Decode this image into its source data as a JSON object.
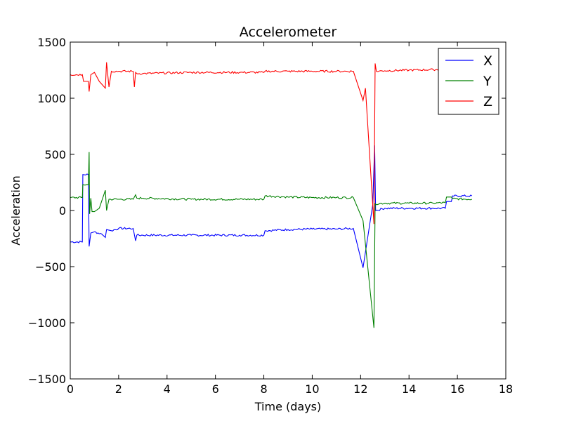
{
  "chart_data": {
    "type": "line",
    "title": "Accelerometer",
    "xlabel": "Time (days)",
    "ylabel": "Acceleration",
    "xlim": [
      0,
      18
    ],
    "ylim": [
      -1500,
      1500
    ],
    "xticks": [
      "0",
      "2",
      "4",
      "6",
      "8",
      "10",
      "12",
      "14",
      "16",
      "18"
    ],
    "yticks": [
      "−1500",
      "−1000",
      "−500",
      "0",
      "500",
      "1000",
      "1500"
    ],
    "grid": false,
    "legend_position": "top-right",
    "series": [
      {
        "name": "X",
        "color": "#0000ff",
        "x": [
          0.0,
          0.5,
          0.52,
          0.75,
          0.78,
          0.85,
          1.0,
          1.3,
          1.45,
          1.5,
          1.7,
          2.0,
          2.6,
          2.7,
          2.75,
          3.0,
          5.0,
          7.0,
          8.0,
          8.05,
          9.0,
          10.0,
          11.0,
          11.7,
          12.1,
          12.5,
          12.58,
          12.62,
          13.0,
          14.0,
          15.0,
          15.5,
          15.55,
          15.75,
          15.8,
          16.6
        ],
        "y": [
          -280,
          -280,
          320,
          320,
          -320,
          -200,
          -190,
          -210,
          -240,
          -170,
          -180,
          -160,
          -160,
          -270,
          -220,
          -220,
          -220,
          -220,
          -220,
          -180,
          -170,
          -165,
          -165,
          -160,
          -510,
          50,
          580,
          0,
          20,
          20,
          20,
          20,
          80,
          80,
          130,
          130
        ]
      },
      {
        "name": "Y",
        "color": "#008000",
        "x": [
          0.0,
          0.5,
          0.52,
          0.75,
          0.78,
          0.8,
          0.85,
          0.9,
          1.0,
          1.2,
          1.45,
          1.5,
          1.6,
          2.0,
          2.6,
          2.7,
          2.75,
          3.0,
          5.0,
          7.0,
          8.0,
          8.05,
          9.0,
          10.0,
          11.0,
          11.7,
          12.1,
          12.55,
          12.6,
          13.0,
          14.0,
          15.0,
          15.5,
          15.55,
          15.75,
          15.8,
          16.6
        ],
        "y": [
          115,
          115,
          230,
          230,
          520,
          -30,
          110,
          -10,
          -10,
          20,
          180,
          0,
          100,
          100,
          100,
          140,
          110,
          110,
          100,
          100,
          100,
          130,
          120,
          115,
          115,
          115,
          -90,
          -1045,
          60,
          65,
          65,
          65,
          70,
          120,
          120,
          105,
          100
        ]
      },
      {
        "name": "Z",
        "color": "#ff0000",
        "x": [
          0.0,
          0.5,
          0.55,
          0.75,
          0.78,
          0.85,
          1.0,
          1.2,
          1.45,
          1.5,
          1.6,
          1.7,
          2.0,
          2.6,
          2.65,
          2.7,
          2.75,
          3.0,
          5.0,
          7.0,
          8.0,
          8.05,
          9.0,
          10.0,
          11.0,
          11.7,
          12.1,
          12.2,
          12.55,
          12.6,
          12.65,
          13.0,
          14.0,
          15.0,
          15.5
        ],
        "y": [
          1210,
          1210,
          1150,
          1150,
          1060,
          1210,
          1230,
          1150,
          1090,
          1320,
          1100,
          1240,
          1240,
          1240,
          1100,
          1230,
          1220,
          1220,
          1230,
          1230,
          1230,
          1240,
          1240,
          1240,
          1240,
          1240,
          980,
          1090,
          -120,
          1310,
          1240,
          1245,
          1250,
          1255,
          1255
        ]
      }
    ]
  }
}
